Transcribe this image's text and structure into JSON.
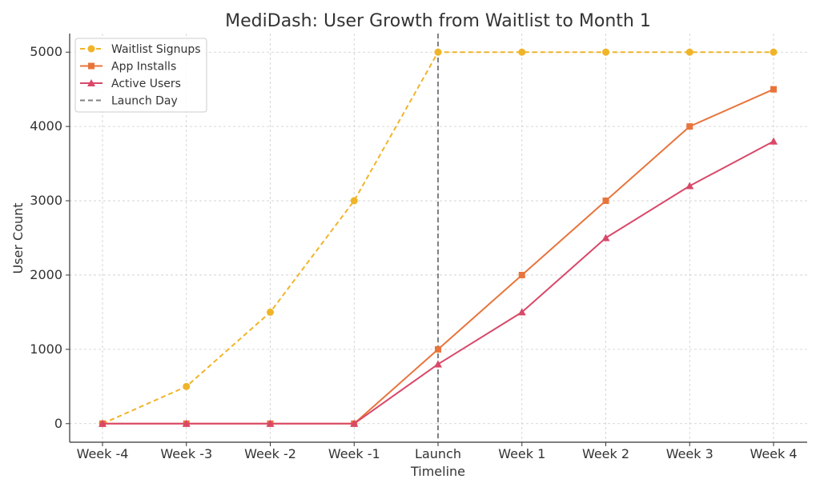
{
  "chart_data": {
    "type": "line",
    "title": "MediDash: User Growth from Waitlist to Month 1",
    "xlabel": "Timeline",
    "ylabel": "User Count",
    "categories": [
      "Week -4",
      "Week -3",
      "Week -2",
      "Week -1",
      "Launch",
      "Week 1",
      "Week 2",
      "Week 3",
      "Week 4"
    ],
    "ylim": [
      -250,
      5250
    ],
    "yticks": [
      0,
      1000,
      2000,
      3000,
      4000,
      5000
    ],
    "grid": true,
    "legend_position": "top-left",
    "series": [
      {
        "name": "Waitlist Signups",
        "values": [
          0,
          500,
          1500,
          3000,
          5000,
          5000,
          5000,
          5000,
          5000
        ],
        "color": "#f0b429",
        "line_style": "dashed",
        "marker": "circle"
      },
      {
        "name": "App Installs",
        "values": [
          0,
          0,
          0,
          0,
          1000,
          2000,
          3000,
          4000,
          4500
        ],
        "color": "#e8743b",
        "line_style": "solid",
        "marker": "square"
      },
      {
        "name": "Active Users",
        "values": [
          0,
          0,
          0,
          0,
          800,
          1500,
          2500,
          3200,
          3800
        ],
        "color": "#d94868",
        "line_style": "solid",
        "marker": "triangle"
      }
    ],
    "reference_line": {
      "name": "Launch Day",
      "x_category": "Launch",
      "color": "#808080",
      "line_style": "dashed"
    }
  }
}
